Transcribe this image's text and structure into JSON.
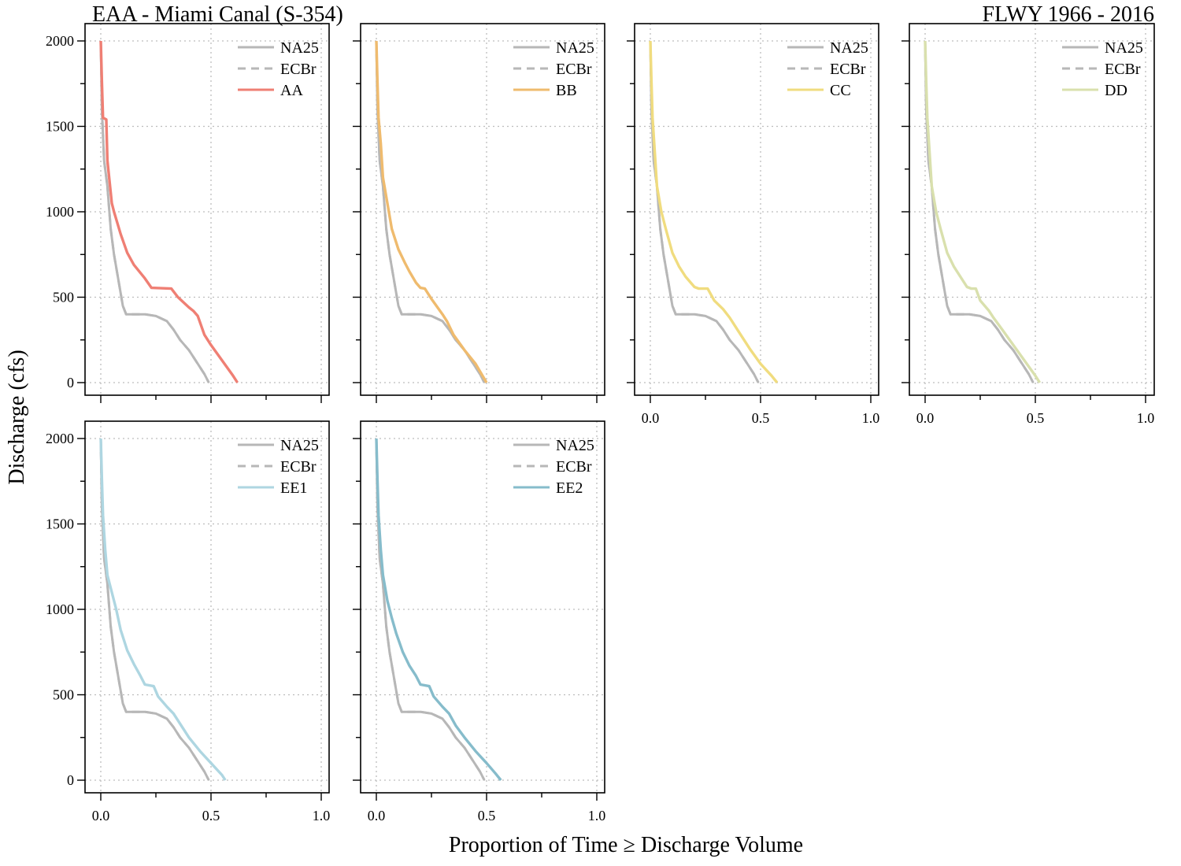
{
  "header": {
    "title_left": "EAA - Miami Canal (S-354)",
    "title_right": "FLWY 1966 - 2016",
    "ylabel": "Discharge (cfs)",
    "xlabel": "Proportion of Time ≥ Discharge Volume"
  },
  "colors": {
    "NA25": "#b7b7b7",
    "ECBr": "#b7b7b7",
    "AA": "#ef7f74",
    "BB": "#efbb6e",
    "CC": "#f0dc7f",
    "DD": "#d9e0ad",
    "EE1": "#aed6e1",
    "EE2": "#86bccb",
    "grid": "#bdbdbd"
  },
  "chart_data": {
    "type": "line",
    "xlim": [
      0,
      1
    ],
    "ylim": [
      0,
      2000
    ],
    "xticks": [
      "0.0",
      "0.5",
      "1.0"
    ],
    "yticks": [
      "0",
      "500",
      "1000",
      "1500",
      "2000"
    ],
    "grid": true,
    "legend_position": "top-right",
    "baseline": {
      "NA25": [
        [
          0.0,
          2000
        ],
        [
          0.005,
          1600
        ],
        [
          0.015,
          1300
        ],
        [
          0.03,
          1150
        ],
        [
          0.045,
          900
        ],
        [
          0.06,
          750
        ],
        [
          0.08,
          600
        ],
        [
          0.1,
          450
        ],
        [
          0.115,
          400
        ],
        [
          0.2,
          400
        ],
        [
          0.25,
          390
        ],
        [
          0.3,
          360
        ],
        [
          0.33,
          310
        ],
        [
          0.36,
          250
        ],
        [
          0.4,
          190
        ],
        [
          0.44,
          110
        ],
        [
          0.47,
          50
        ],
        [
          0.49,
          0
        ]
      ],
      "ECBr": [
        [
          0.0,
          2000
        ],
        [
          0.005,
          1600
        ],
        [
          0.015,
          1300
        ],
        [
          0.03,
          1150
        ],
        [
          0.045,
          900
        ],
        [
          0.06,
          750
        ],
        [
          0.08,
          600
        ],
        [
          0.1,
          450
        ],
        [
          0.115,
          400
        ],
        [
          0.2,
          400
        ],
        [
          0.25,
          390
        ],
        [
          0.3,
          360
        ],
        [
          0.33,
          310
        ],
        [
          0.36,
          250
        ],
        [
          0.4,
          190
        ],
        [
          0.44,
          110
        ],
        [
          0.47,
          50
        ],
        [
          0.49,
          0
        ]
      ]
    },
    "panels": [
      {
        "alt": "AA",
        "points": [
          [
            0.0,
            2000
          ],
          [
            0.005,
            1760
          ],
          [
            0.01,
            1550
          ],
          [
            0.025,
            1540
          ],
          [
            0.03,
            1300
          ],
          [
            0.05,
            1050
          ],
          [
            0.06,
            1000
          ],
          [
            0.09,
            870
          ],
          [
            0.12,
            760
          ],
          [
            0.15,
            690
          ],
          [
            0.2,
            610
          ],
          [
            0.23,
            555
          ],
          [
            0.32,
            550
          ],
          [
            0.35,
            500
          ],
          [
            0.4,
            440
          ],
          [
            0.42,
            420
          ],
          [
            0.44,
            390
          ],
          [
            0.47,
            280
          ],
          [
            0.5,
            220
          ],
          [
            0.55,
            130
          ],
          [
            0.6,
            40
          ],
          [
            0.62,
            0
          ]
        ]
      },
      {
        "alt": "BB",
        "points": [
          [
            0.0,
            2000
          ],
          [
            0.005,
            1760
          ],
          [
            0.01,
            1550
          ],
          [
            0.02,
            1400
          ],
          [
            0.03,
            1200
          ],
          [
            0.05,
            1050
          ],
          [
            0.07,
            900
          ],
          [
            0.1,
            780
          ],
          [
            0.13,
            700
          ],
          [
            0.15,
            650
          ],
          [
            0.18,
            585
          ],
          [
            0.2,
            555
          ],
          [
            0.22,
            550
          ],
          [
            0.25,
            490
          ],
          [
            0.3,
            400
          ],
          [
            0.32,
            360
          ],
          [
            0.35,
            280
          ],
          [
            0.4,
            190
          ],
          [
            0.45,
            110
          ],
          [
            0.5,
            0
          ]
        ]
      },
      {
        "alt": "CC",
        "points": [
          [
            0.0,
            2000
          ],
          [
            0.005,
            1760
          ],
          [
            0.01,
            1550
          ],
          [
            0.02,
            1350
          ],
          [
            0.03,
            1150
          ],
          [
            0.05,
            1000
          ],
          [
            0.07,
            900
          ],
          [
            0.1,
            760
          ],
          [
            0.13,
            680
          ],
          [
            0.16,
            620
          ],
          [
            0.2,
            560
          ],
          [
            0.22,
            550
          ],
          [
            0.26,
            550
          ],
          [
            0.29,
            480
          ],
          [
            0.33,
            430
          ],
          [
            0.36,
            380
          ],
          [
            0.4,
            300
          ],
          [
            0.45,
            200
          ],
          [
            0.5,
            110
          ],
          [
            0.55,
            40
          ],
          [
            0.575,
            0
          ]
        ]
      },
      {
        "alt": "DD",
        "points": [
          [
            0.0,
            2000
          ],
          [
            0.005,
            1760
          ],
          [
            0.01,
            1550
          ],
          [
            0.02,
            1350
          ],
          [
            0.03,
            1150
          ],
          [
            0.05,
            1000
          ],
          [
            0.07,
            900
          ],
          [
            0.1,
            760
          ],
          [
            0.13,
            680
          ],
          [
            0.16,
            620
          ],
          [
            0.19,
            560
          ],
          [
            0.21,
            550
          ],
          [
            0.23,
            550
          ],
          [
            0.25,
            480
          ],
          [
            0.29,
            420
          ],
          [
            0.31,
            380
          ],
          [
            0.35,
            310
          ],
          [
            0.4,
            220
          ],
          [
            0.45,
            130
          ],
          [
            0.5,
            40
          ],
          [
            0.52,
            0
          ]
        ]
      },
      {
        "alt": "EE1",
        "points": [
          [
            0.0,
            2000
          ],
          [
            0.005,
            1760
          ],
          [
            0.01,
            1550
          ],
          [
            0.02,
            1350
          ],
          [
            0.03,
            1200
          ],
          [
            0.05,
            1100
          ],
          [
            0.07,
            1000
          ],
          [
            0.09,
            880
          ],
          [
            0.12,
            760
          ],
          [
            0.15,
            680
          ],
          [
            0.18,
            610
          ],
          [
            0.2,
            560
          ],
          [
            0.24,
            550
          ],
          [
            0.26,
            490
          ],
          [
            0.3,
            430
          ],
          [
            0.33,
            390
          ],
          [
            0.36,
            330
          ],
          [
            0.4,
            250
          ],
          [
            0.45,
            170
          ],
          [
            0.5,
            100
          ],
          [
            0.55,
            30
          ],
          [
            0.565,
            0
          ]
        ]
      },
      {
        "alt": "EE2",
        "points": [
          [
            0.0,
            2000
          ],
          [
            0.005,
            1760
          ],
          [
            0.01,
            1550
          ],
          [
            0.02,
            1350
          ],
          [
            0.03,
            1200
          ],
          [
            0.05,
            1050
          ],
          [
            0.07,
            950
          ],
          [
            0.09,
            860
          ],
          [
            0.12,
            750
          ],
          [
            0.15,
            670
          ],
          [
            0.18,
            610
          ],
          [
            0.2,
            560
          ],
          [
            0.24,
            550
          ],
          [
            0.26,
            490
          ],
          [
            0.3,
            430
          ],
          [
            0.33,
            390
          ],
          [
            0.36,
            320
          ],
          [
            0.4,
            250
          ],
          [
            0.45,
            170
          ],
          [
            0.5,
            100
          ],
          [
            0.54,
            40
          ],
          [
            0.565,
            0
          ]
        ]
      }
    ]
  }
}
